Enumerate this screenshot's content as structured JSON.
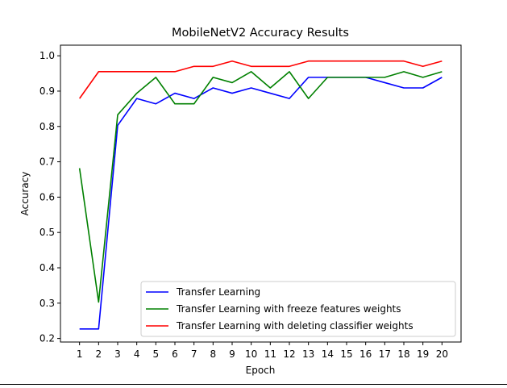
{
  "chart_data": {
    "type": "line",
    "title": "MobileNetV2 Accuracy Results",
    "xlabel": "Epoch",
    "ylabel": "Accuracy",
    "x": [
      1,
      2,
      3,
      4,
      5,
      6,
      7,
      8,
      9,
      10,
      11,
      12,
      13,
      14,
      15,
      16,
      17,
      18,
      19,
      20
    ],
    "xlim": [
      0.0,
      21.0
    ],
    "ylim": [
      0.19,
      1.03
    ],
    "yticks": [
      0.2,
      0.3,
      0.4,
      0.5,
      0.6,
      0.7,
      0.8,
      0.9,
      1.0
    ],
    "ytick_labels": [
      "0.2",
      "0.3",
      "0.4",
      "0.5",
      "0.6",
      "0.7",
      "0.8",
      "0.9",
      "1.0"
    ],
    "xtick_labels": [
      "1",
      "2",
      "3",
      "4",
      "5",
      "6",
      "7",
      "8",
      "9",
      "10",
      "11",
      "12",
      "13",
      "14",
      "15",
      "16",
      "17",
      "18",
      "19",
      "20"
    ],
    "grid": false,
    "legend_position": "lower-right",
    "series": [
      {
        "name": "Transfer Learning",
        "color": "#0000ff",
        "values": [
          0.227,
          0.227,
          0.803,
          0.879,
          0.864,
          0.894,
          0.879,
          0.909,
          0.894,
          0.909,
          0.894,
          0.879,
          0.939,
          0.939,
          0.939,
          0.939,
          0.924,
          0.909,
          0.909,
          0.939
        ]
      },
      {
        "name": "Transfer Learning with freeze features weights",
        "color": "#008000",
        "values": [
          0.682,
          0.303,
          0.833,
          0.894,
          0.939,
          0.864,
          0.864,
          0.939,
          0.924,
          0.955,
          0.909,
          0.955,
          0.879,
          0.939,
          0.939,
          0.939,
          0.939,
          0.955,
          0.939,
          0.955
        ]
      },
      {
        "name": "Transfer Learning with deleting classifier weights",
        "color": "#ff0000",
        "values": [
          0.879,
          0.955,
          0.955,
          0.955,
          0.955,
          0.955,
          0.97,
          0.97,
          0.985,
          0.97,
          0.97,
          0.97,
          0.985,
          0.985,
          0.985,
          0.985,
          0.985,
          0.985,
          0.97,
          0.985
        ]
      }
    ]
  }
}
